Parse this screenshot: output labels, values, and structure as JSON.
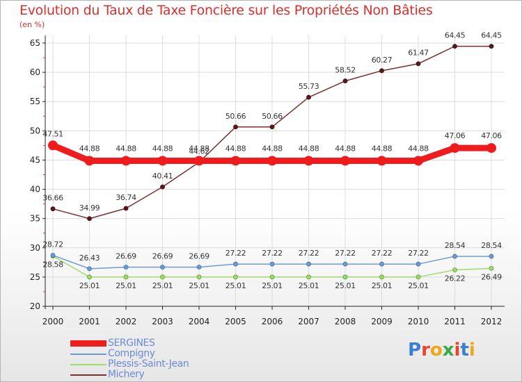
{
  "title": "Evolution du Taux de Taxe Foncière sur les Propriétés Non Bâties",
  "subtitle": "(en %)",
  "logo_text": "Proxiti",
  "chart_data": {
    "type": "line",
    "title": "Evolution du Taux de Taxe Foncière sur les Propriétés Non Bâties",
    "ylabel": "(en %)",
    "xlabel": "",
    "ylim": [
      20,
      65
    ],
    "yticks": [
      20,
      25,
      30,
      35,
      40,
      45,
      50,
      55,
      60,
      65
    ],
    "x": [
      "2000",
      "2001",
      "2002",
      "2003",
      "2004",
      "2005",
      "2006",
      "2007",
      "2008",
      "2009",
      "2010",
      "2011",
      "2012"
    ],
    "series": [
      {
        "name": "SERGINES",
        "color": "#ee1c1c",
        "values": [
          47.51,
          44.88,
          44.88,
          44.88,
          44.88,
          44.88,
          44.88,
          44.88,
          44.88,
          44.88,
          44.88,
          47.06,
          47.06
        ],
        "labels": [
          "47.51",
          "44.88",
          "44.88",
          "44.88",
          "44.88",
          "44.88",
          "44.88",
          "44.88",
          "44.88",
          "44.88",
          "44.88",
          "47.06",
          "47.06"
        ]
      },
      {
        "name": "Compigny",
        "color": "#6e9bd0",
        "values": [
          28.72,
          26.43,
          26.69,
          26.69,
          26.69,
          27.22,
          27.22,
          27.22,
          27.22,
          27.22,
          27.22,
          28.54,
          28.54
        ],
        "labels": [
          "28.72",
          "26.43",
          "26.69",
          "26.69",
          "26.69",
          "27.22",
          "27.22",
          "27.22",
          "27.22",
          "27.22",
          "27.22",
          "28.54",
          "28.54"
        ]
      },
      {
        "name": "Plessis-Saint-Jean",
        "color": "#9fdc6e",
        "values": [
          28.58,
          25.01,
          25.01,
          25.01,
          25.01,
          25.01,
          25.01,
          25.01,
          25.01,
          25.01,
          25.01,
          26.22,
          26.49
        ],
        "labels": [
          "28.58",
          "25.01",
          "25.01",
          "25.01",
          "25.01",
          "25.01",
          "25.01",
          "25.01",
          "25.01",
          "25.01",
          "25.01",
          "26.22",
          "26.49"
        ]
      },
      {
        "name": "Michery",
        "color": "#7a2e2e",
        "values": [
          36.66,
          34.99,
          36.74,
          40.41,
          44.62,
          50.66,
          50.66,
          55.73,
          58.52,
          60.27,
          61.47,
          64.45,
          64.45
        ],
        "labels": [
          "36.66",
          "34.99",
          "36.74",
          "40.41",
          "44.62",
          "50.66",
          "50.66",
          "55.73",
          "58.52",
          "60.27",
          "61.47",
          "64.45",
          "64.45"
        ]
      }
    ],
    "legend_position": "bottom-left",
    "grid": true
  }
}
